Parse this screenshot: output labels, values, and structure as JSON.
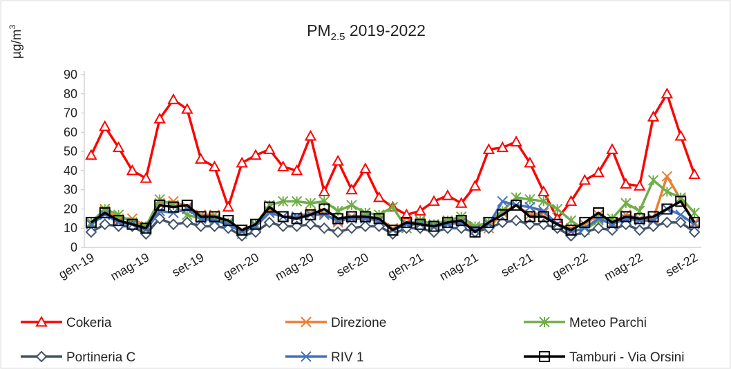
{
  "chart_data": {
    "type": "line",
    "title": [
      "PM",
      "2.5",
      " 2019-2022"
    ],
    "ylabel": [
      "µg/m",
      "3"
    ],
    "categories": [
      "gen-19",
      null,
      null,
      null,
      "mag-19",
      null,
      null,
      null,
      "set-19",
      null,
      null,
      null,
      "gen-20",
      null,
      null,
      null,
      "mag-20",
      null,
      null,
      null,
      "set-20",
      null,
      null,
      null,
      "gen-21",
      null,
      null,
      null,
      "mag-21",
      null,
      null,
      null,
      "set-21",
      null,
      null,
      null,
      "gen-22",
      null,
      null,
      null,
      "mag-22",
      null,
      null,
      null,
      "set-22"
    ],
    "ylim": [
      0,
      90
    ],
    "yticks": [
      0,
      10,
      20,
      30,
      40,
      50,
      60,
      70,
      80,
      90
    ],
    "grid": false,
    "series": [
      {
        "name": "Cokeria",
        "color": "#ff0000",
        "marker": "triangle",
        "values": [
          48,
          63,
          52,
          40,
          36,
          67,
          77,
          72,
          46,
          42,
          21,
          44,
          48,
          51,
          42,
          40,
          58,
          29,
          45,
          30,
          41,
          26,
          21,
          17,
          19,
          24,
          27,
          23,
          32,
          51,
          52,
          55,
          44,
          29,
          15,
          24,
          35,
          39,
          51,
          33,
          32,
          68,
          80,
          58,
          38
        ]
      },
      {
        "name": "Direzione",
        "color": "#ed7d31",
        "marker": "x",
        "values": [
          12,
          19,
          15,
          15,
          11,
          23,
          24,
          21,
          17,
          17,
          13,
          9,
          12,
          19,
          16,
          16,
          18,
          18,
          13,
          16,
          16,
          15,
          10,
          13,
          13,
          12,
          13,
          14,
          10,
          10,
          18,
          22,
          17,
          18,
          12,
          10,
          12,
          17,
          13,
          17,
          15,
          15,
          37,
          25,
          13
        ]
      },
      {
        "name": "Meteo Parchi",
        "color": "#70ad47",
        "marker": "star",
        "values": [
          13,
          20,
          17,
          13,
          11,
          25,
          22,
          17,
          15,
          15,
          13,
          7,
          12,
          22,
          24,
          24,
          23,
          24,
          19,
          22,
          18,
          17,
          21,
          10,
          14,
          12,
          14,
          16,
          11,
          13,
          19,
          26,
          25,
          24,
          20,
          14,
          9,
          14,
          15,
          23,
          19,
          35,
          29,
          26,
          18
        ]
      },
      {
        "name": "Portineria C",
        "color": "#44546a",
        "marker": "diamond",
        "values": [
          8,
          12,
          11,
          11,
          7,
          15,
          12,
          13,
          11,
          11,
          10,
          6,
          8,
          13,
          11,
          11,
          12,
          10,
          8,
          10,
          11,
          11,
          7,
          10,
          10,
          8,
          10,
          10,
          8,
          10,
          13,
          14,
          12,
          12,
          10,
          6,
          8,
          10,
          9,
          12,
          9,
          11,
          13,
          13,
          8
        ]
      },
      {
        "name": "RIV 1",
        "color": "#4472c4",
        "marker": "x",
        "values": [
          12,
          17,
          13,
          12,
          9,
          19,
          18,
          20,
          15,
          14,
          12,
          8,
          11,
          18,
          16,
          16,
          17,
          17,
          14,
          15,
          15,
          14,
          9,
          12,
          12,
          11,
          12,
          13,
          9,
          12,
          24,
          22,
          21,
          19,
          12,
          8,
          10,
          15,
          12,
          15,
          14,
          14,
          20,
          17,
          12
        ]
      },
      {
        "name": "Tamburi - Via Orsini",
        "color": "#000000",
        "marker": "square",
        "values": [
          13,
          18,
          14,
          12,
          10,
          22,
          21,
          22,
          16,
          16,
          14,
          9,
          12,
          21,
          16,
          15,
          17,
          20,
          15,
          16,
          16,
          15,
          9,
          13,
          12,
          11,
          13,
          14,
          8,
          13,
          17,
          22,
          16,
          16,
          12,
          9,
          13,
          18,
          13,
          16,
          15,
          16,
          20,
          24,
          13
        ]
      }
    ]
  }
}
